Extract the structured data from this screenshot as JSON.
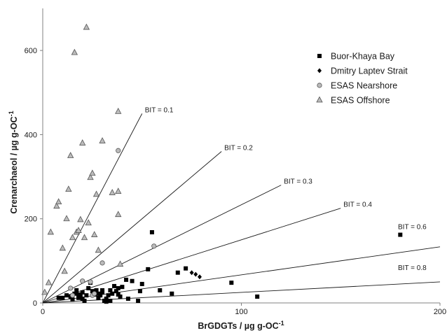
{
  "chart_data": {
    "type": "scatter",
    "xlabel": "BrGDGTs / µg g-OC",
    "xlabel_sup": "-1",
    "ylabel": "Crenarchaeol / µg g-OC",
    "ylabel_sup": "-1",
    "xlim": [
      0,
      200
    ],
    "ylim": [
      0,
      700
    ],
    "x_ticks": [
      0,
      100,
      200
    ],
    "y_ticks": [
      0,
      200,
      400,
      600
    ],
    "grid": false,
    "legend_position": "top-right",
    "series": [
      {
        "name": "Buor-Khaya Bay",
        "marker": "square",
        "color": "#000000",
        "points": [
          [
            8,
            12
          ],
          [
            10,
            12
          ],
          [
            12,
            18
          ],
          [
            14,
            15
          ],
          [
            15,
            8
          ],
          [
            16,
            22
          ],
          [
            17,
            30
          ],
          [
            18,
            20
          ],
          [
            18,
            12
          ],
          [
            19,
            18
          ],
          [
            20,
            10
          ],
          [
            20,
            25
          ],
          [
            21,
            5
          ],
          [
            22,
            18
          ],
          [
            23,
            35
          ],
          [
            24,
            48
          ],
          [
            25,
            28
          ],
          [
            26,
            20
          ],
          [
            27,
            30
          ],
          [
            28,
            22
          ],
          [
            28,
            12
          ],
          [
            29,
            18
          ],
          [
            30,
            25
          ],
          [
            30,
            30
          ],
          [
            31,
            5
          ],
          [
            32,
            3
          ],
          [
            32,
            10
          ],
          [
            33,
            18
          ],
          [
            34,
            5
          ],
          [
            34,
            30
          ],
          [
            35,
            22
          ],
          [
            36,
            40
          ],
          [
            37,
            28
          ],
          [
            38,
            35
          ],
          [
            38,
            20
          ],
          [
            39,
            15
          ],
          [
            40,
            38
          ],
          [
            42,
            55
          ],
          [
            43,
            10
          ],
          [
            45,
            52
          ],
          [
            48,
            5
          ],
          [
            49,
            28
          ],
          [
            50,
            45
          ],
          [
            53,
            80
          ],
          [
            55,
            168
          ],
          [
            59,
            30
          ],
          [
            65,
            22
          ],
          [
            68,
            72
          ],
          [
            72,
            82
          ],
          [
            95,
            48
          ],
          [
            108,
            15
          ],
          [
            180,
            162
          ]
        ]
      },
      {
        "name": "Dmitry Laptev Strait",
        "marker": "diamond",
        "color": "#000000",
        "points": [
          [
            75,
            72
          ],
          [
            77,
            68
          ],
          [
            79,
            62
          ]
        ]
      },
      {
        "name": "ESAS Nearshore",
        "marker": "circle",
        "color": "#bbbbbb",
        "points": [
          [
            14,
            35
          ],
          [
            15,
            18
          ],
          [
            20,
            52
          ],
          [
            24,
            50
          ],
          [
            25,
            18
          ],
          [
            26,
            22
          ],
          [
            30,
            95
          ],
          [
            38,
            362
          ],
          [
            56,
            135
          ]
        ]
      },
      {
        "name": "ESAS Offshore",
        "marker": "triangle",
        "color": "#bbbbbb",
        "points": [
          [
            1,
            25
          ],
          [
            3,
            48
          ],
          [
            4,
            168
          ],
          [
            7,
            230
          ],
          [
            8,
            240
          ],
          [
            10,
            130
          ],
          [
            11,
            75
          ],
          [
            12,
            200
          ],
          [
            13,
            270
          ],
          [
            14,
            350
          ],
          [
            15,
            155
          ],
          [
            16,
            595
          ],
          [
            17,
            168
          ],
          [
            18,
            172
          ],
          [
            19,
            198
          ],
          [
            20,
            380
          ],
          [
            21,
            155
          ],
          [
            22,
            655
          ],
          [
            23,
            190
          ],
          [
            24,
            298
          ],
          [
            25,
            308
          ],
          [
            26,
            162
          ],
          [
            27,
            258
          ],
          [
            28,
            125
          ],
          [
            30,
            385
          ],
          [
            35,
            262
          ],
          [
            38,
            210
          ],
          [
            38,
            455
          ],
          [
            38,
            265
          ],
          [
            39,
            92
          ]
        ]
      }
    ],
    "bit_lines": [
      {
        "label": "BIT = 0.1",
        "bit": 0.1,
        "x_end": 50
      },
      {
        "label": "BIT = 0.2",
        "bit": 0.2,
        "x_end": 90
      },
      {
        "label": "BIT = 0.3",
        "bit": 0.3,
        "x_end": 120
      },
      {
        "label": "BIT = 0.4",
        "bit": 0.4,
        "x_end": 150
      },
      {
        "label": "BIT = 0.6",
        "bit": 0.6,
        "x_end": 200
      },
      {
        "label": "BIT = 0.8",
        "bit": 0.8,
        "x_end": 200
      }
    ]
  }
}
